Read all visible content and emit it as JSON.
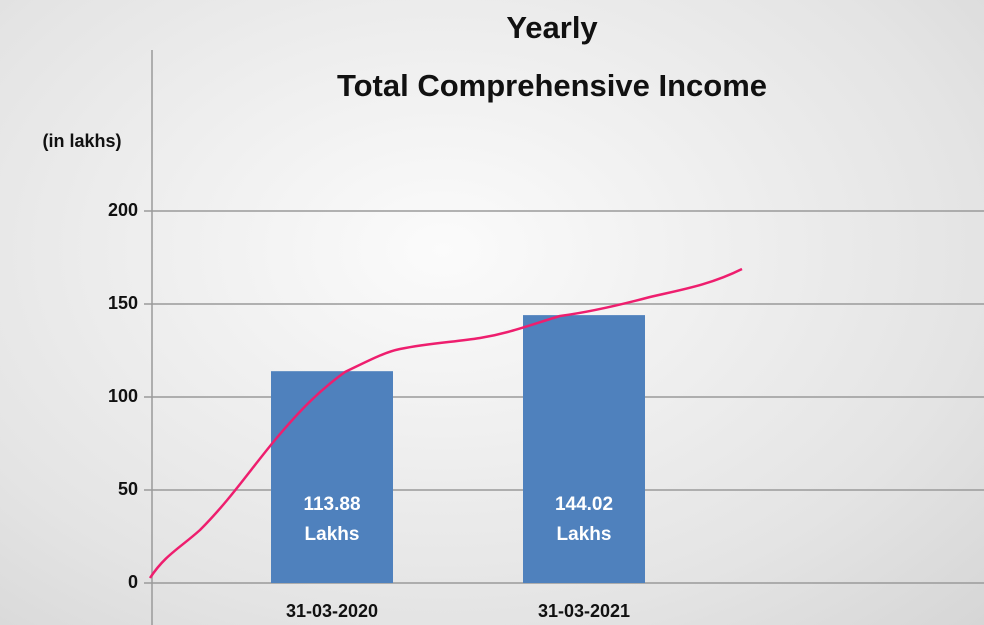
{
  "chart_data": {
    "type": "bar",
    "title": [
      "Yearly",
      "Total Comprehensive Income"
    ],
    "y_label": "(in lakhs)",
    "categories": [
      "31-03-2020",
      "31-03-2021"
    ],
    "values": [
      113.88,
      144.02
    ],
    "value_labels": [
      "113.88 Lakhs",
      "144.02 Lakhs"
    ],
    "color": "#4f81bd",
    "ylim": [
      0,
      200
    ],
    "yticks": [
      0,
      50,
      100,
      150,
      200
    ],
    "grid": true
  }
}
